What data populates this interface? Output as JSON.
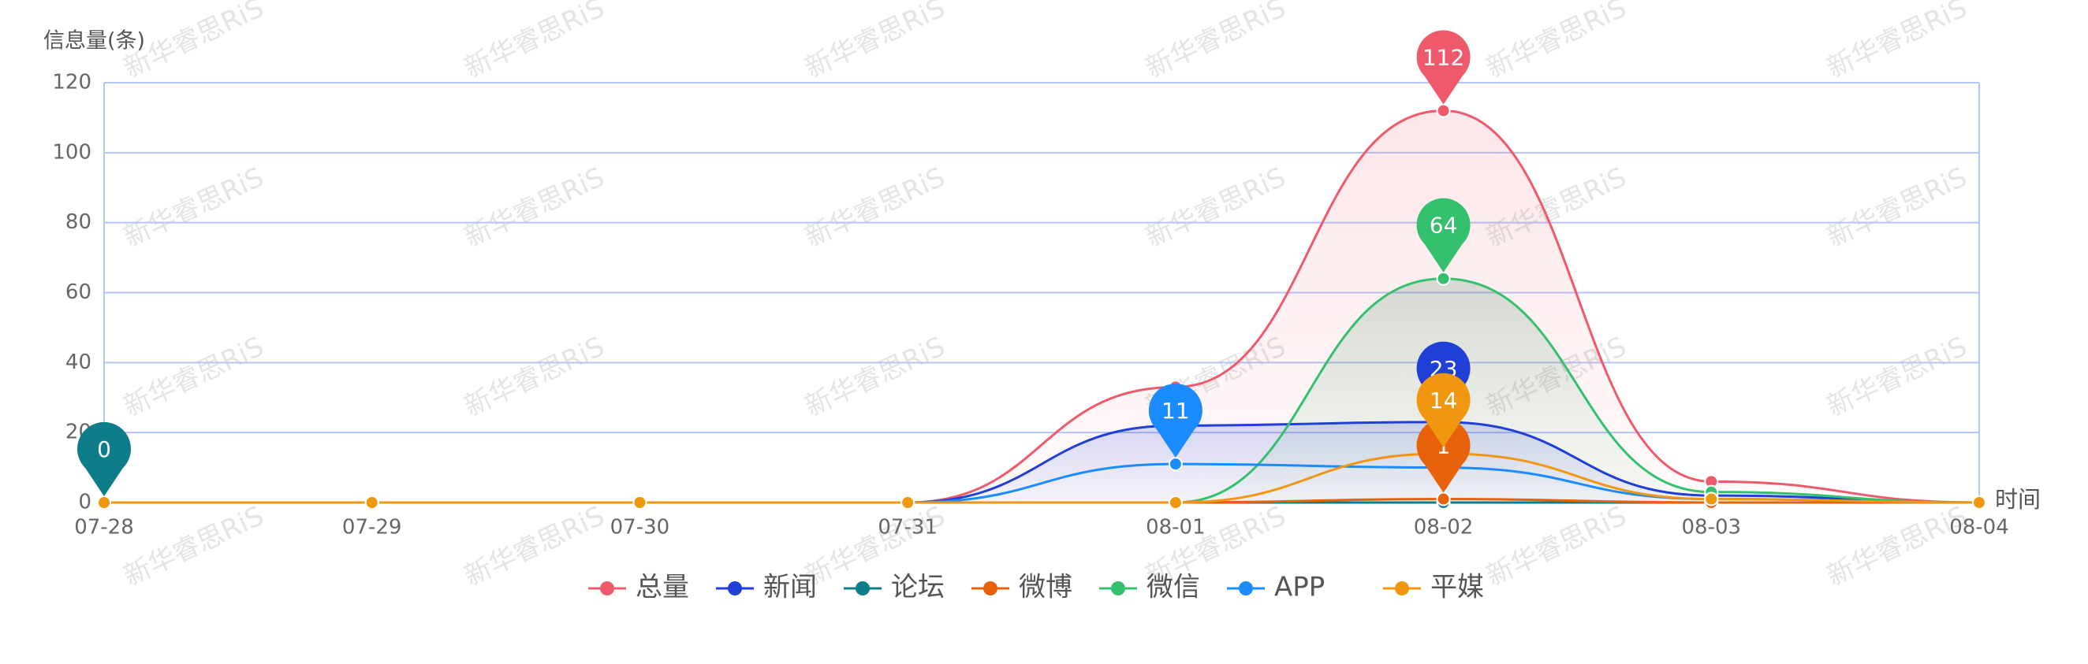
{
  "chart_data": {
    "type": "line",
    "watermark": "新华睿思RiS",
    "y_label": "信息量(条)",
    "x_label": "时间",
    "categories": [
      "07-28",
      "07-29",
      "07-30",
      "07-31",
      "08-01",
      "08-02",
      "08-03",
      "08-04"
    ],
    "ylim": [
      0,
      120
    ],
    "yticks": [
      0,
      20,
      40,
      60,
      80,
      100,
      120
    ],
    "grid": true,
    "smooth": true,
    "legend": "bottom",
    "series": [
      {
        "name": "总量",
        "color": "#ee5a6b",
        "area": true,
        "values": [
          0,
          0,
          0,
          0,
          33,
          112,
          6,
          0
        ]
      },
      {
        "name": "新闻",
        "color": "#1f3fd6",
        "area": true,
        "values": [
          0,
          0,
          0,
          0,
          22,
          23,
          2,
          0
        ]
      },
      {
        "name": "论坛",
        "color": "#0e7d8a",
        "area": false,
        "values": [
          0,
          0,
          0,
          0,
          0,
          0,
          0,
          0
        ]
      },
      {
        "name": "微博",
        "color": "#e8620c",
        "area": false,
        "values": [
          0,
          0,
          0,
          0,
          0,
          1,
          0,
          0
        ]
      },
      {
        "name": "微信",
        "color": "#34c06d",
        "area": true,
        "values": [
          0,
          0,
          0,
          0,
          0,
          64,
          3,
          0
        ]
      },
      {
        "name": "APP",
        "color": "#1a8cff",
        "area": false,
        "values": [
          0,
          0,
          0,
          0,
          11,
          10,
          1,
          0
        ]
      },
      {
        "name": "平媒",
        "color": "#f0960f",
        "area": false,
        "values": [
          0,
          0,
          0,
          0,
          0,
          14,
          1,
          0
        ]
      }
    ]
  }
}
